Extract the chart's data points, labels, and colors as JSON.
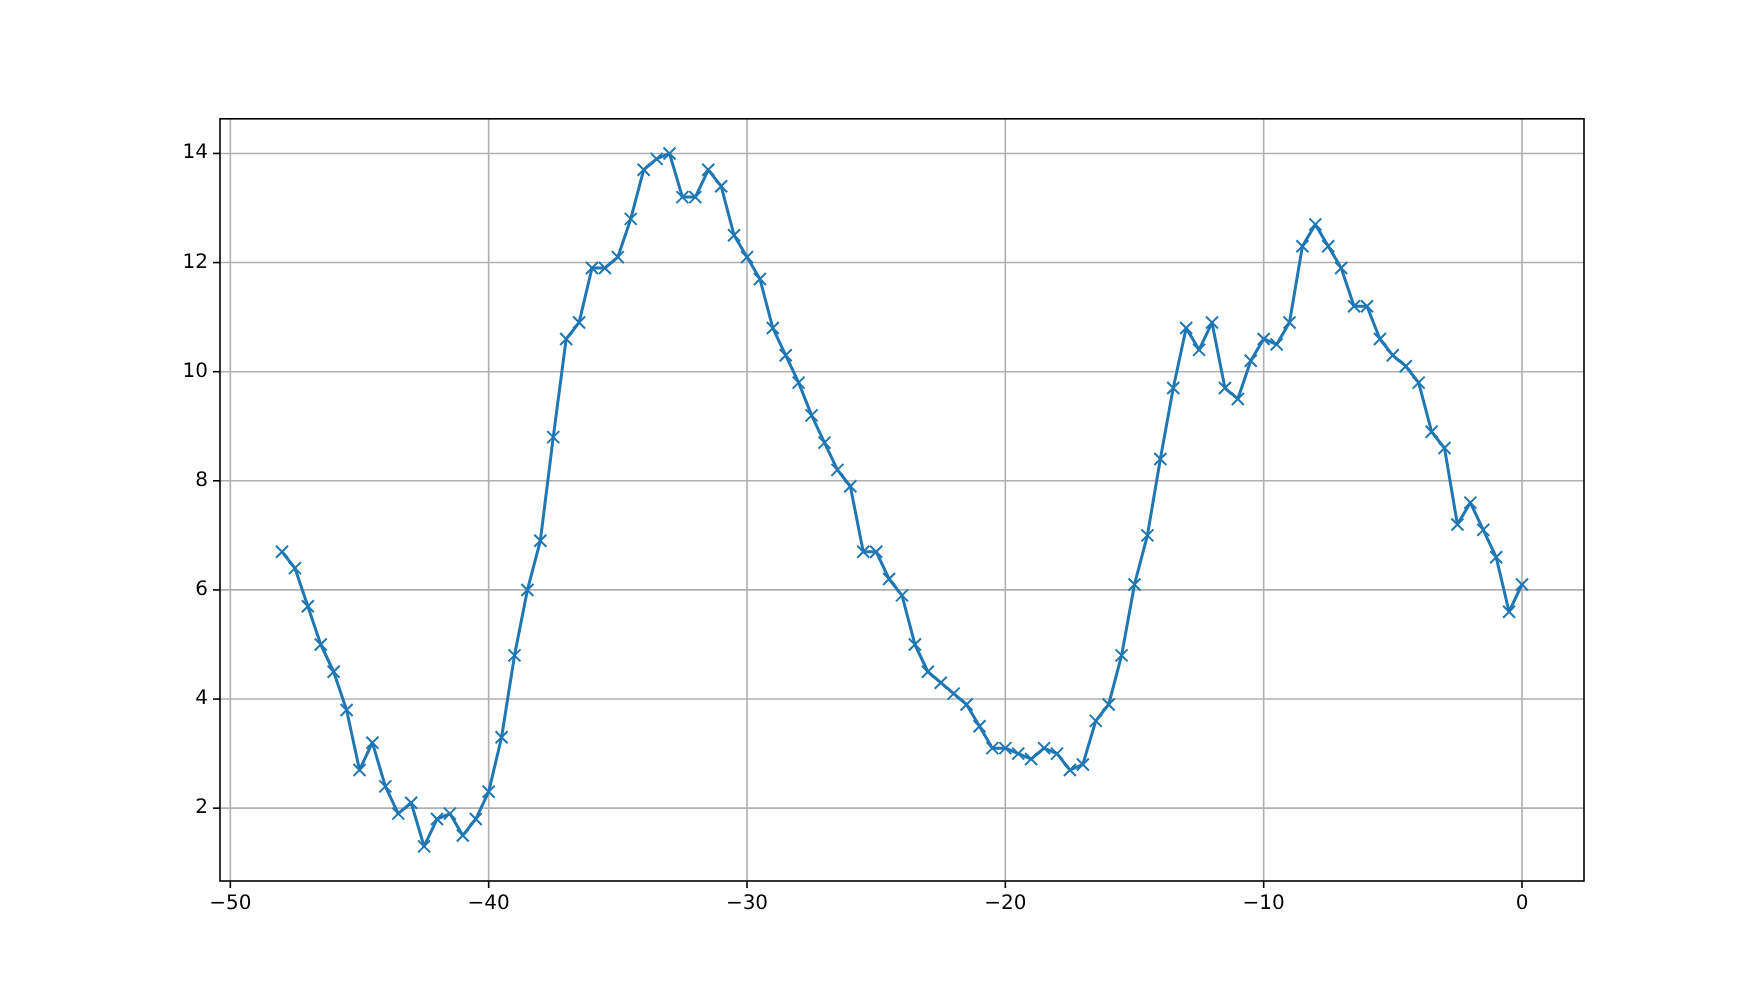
{
  "chart_data": {
    "type": "line",
    "x": [
      -48,
      -47.5,
      -47,
      -46.5,
      -46,
      -45.5,
      -45,
      -44.5,
      -44,
      -43.5,
      -43,
      -42.5,
      -42,
      -41.5,
      -41,
      -40.5,
      -40,
      -39.5,
      -39,
      -38.5,
      -38,
      -37.5,
      -37,
      -36.5,
      -36,
      -35.5,
      -35,
      -34.5,
      -34,
      -33.5,
      -33,
      -32.5,
      -32,
      -31.5,
      -31,
      -30.5,
      -30,
      -29.5,
      -29,
      -28.5,
      -28,
      -27.5,
      -27,
      -26.5,
      -26,
      -25.5,
      -25,
      -24.5,
      -24,
      -23.5,
      -23,
      -22.5,
      -22,
      -21.5,
      -21,
      -20.5,
      -20,
      -19.5,
      -19,
      -18.5,
      -18,
      -17.5,
      -17,
      -16.5,
      -16,
      -15.5,
      -15,
      -14.5,
      -14,
      -13.5,
      -13,
      -12.5,
      -12,
      -11.5,
      -11,
      -10.5,
      -10,
      -9.5,
      -9,
      -8.5,
      -8,
      -7.5,
      -7,
      -6.5,
      -6,
      -5.5,
      -5,
      -4.5,
      -4,
      -3.5,
      -3,
      -2.5,
      -2,
      -1.5,
      -1,
      -0.5,
      0
    ],
    "series": [
      {
        "color": "#1f77b4",
        "values": [
          6.7,
          6.4,
          5.7,
          5.0,
          4.5,
          3.8,
          2.7,
          3.2,
          2.4,
          1.9,
          2.1,
          1.3,
          1.8,
          1.9,
          1.5,
          1.8,
          2.3,
          3.3,
          4.8,
          6.0,
          6.9,
          8.8,
          10.6,
          10.9,
          11.9,
          11.9,
          12.1,
          12.8,
          13.7,
          13.9,
          14.0,
          13.2,
          13.2,
          13.7,
          13.4,
          12.5,
          12.1,
          11.7,
          10.8,
          10.3,
          9.8,
          9.2,
          8.7,
          8.2,
          7.9,
          6.7,
          6.7,
          6.2,
          5.9,
          5.0,
          4.5,
          4.3,
          4.1,
          3.9,
          3.5,
          3.1,
          3.1,
          3.0,
          2.9,
          3.1,
          3.0,
          2.7,
          2.8,
          3.6,
          3.9,
          4.8,
          6.1,
          7.0,
          8.4,
          9.7,
          10.8,
          10.4,
          10.9,
          9.7,
          9.5,
          10.2,
          10.6,
          10.5,
          10.9,
          12.3,
          12.7,
          12.3,
          11.9,
          11.2,
          11.2,
          10.6,
          10.3,
          10.1,
          9.8,
          8.9,
          8.6,
          7.2,
          7.6,
          7.1,
          6.6,
          5.6,
          6.1
        ]
      }
    ],
    "xlim": [
      -50.4,
      2.4
    ],
    "ylim": [
      0.665,
      14.635
    ],
    "xticks": [
      {
        "value": -50,
        "label": "−50"
      },
      {
        "value": -40,
        "label": "−40"
      },
      {
        "value": -30,
        "label": "−30"
      },
      {
        "value": -20,
        "label": "−20"
      },
      {
        "value": -10,
        "label": "−10"
      },
      0
    ],
    "yticks": [
      2,
      4,
      6,
      8,
      10,
      12,
      14
    ],
    "grid": true,
    "marker": "cross",
    "line_style": "solid"
  }
}
